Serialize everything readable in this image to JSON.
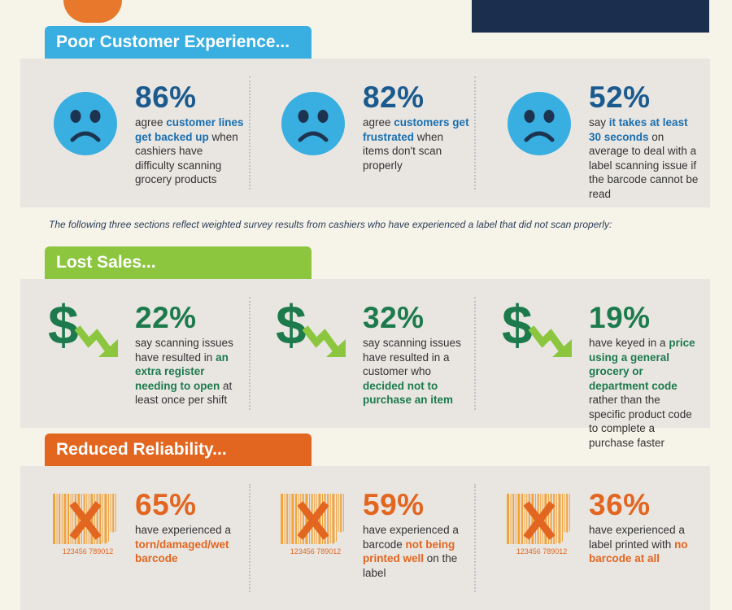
{
  "sections": [
    {
      "title": "Poor Customer Experience...",
      "icon": "sad-face-icon",
      "color": "#39aee0",
      "stats": [
        {
          "pct": "86%",
          "parts": [
            {
              "t": "agree "
            },
            {
              "t": "customer lines get backed up",
              "b": true
            },
            {
              "t": " when cashiers have difficulty scanning grocery products"
            }
          ]
        },
        {
          "pct": "82%",
          "parts": [
            {
              "t": "agree "
            },
            {
              "t": "customers get frustrated",
              "b": true
            },
            {
              "t": " when items don't scan properly"
            }
          ]
        },
        {
          "pct": "52%",
          "parts": [
            {
              "t": "say "
            },
            {
              "t": "it takes at least 30 seconds",
              "b": true
            },
            {
              "t": " on average to deal with a label scanning issue if the barcode cannot be read"
            }
          ]
        }
      ]
    },
    {
      "title": "Lost Sales...",
      "icon": "dollar-down-icon",
      "color": "#8cc63f",
      "stats": [
        {
          "pct": "22%",
          "parts": [
            {
              "t": "say scanning issues have resulted in "
            },
            {
              "t": "an extra register needing to open",
              "b": true
            },
            {
              "t": " at least once per shift"
            }
          ]
        },
        {
          "pct": "32%",
          "parts": [
            {
              "t": "say scanning issues have resulted in a customer who "
            },
            {
              "t": "decided not to purchase an item",
              "b": true
            }
          ]
        },
        {
          "pct": "19%",
          "parts": [
            {
              "t": "have keyed in a "
            },
            {
              "t": "price using a general grocery or department code",
              "b": true
            },
            {
              "t": " rather than the specific product code to complete a purchase faster"
            }
          ]
        }
      ]
    },
    {
      "title": "Reduced Reliability...",
      "icon": "broken-barcode-icon",
      "color": "#e2661f",
      "barcode_digits": "123456 789012",
      "stats": [
        {
          "pct": "65%",
          "parts": [
            {
              "t": "have experienced a "
            },
            {
              "t": "torn/damaged/wet barcode",
              "b": true
            }
          ]
        },
        {
          "pct": "59%",
          "parts": [
            {
              "t": "have experienced a barcode "
            },
            {
              "t": "not being printed well",
              "b": true
            },
            {
              "t": " on the label"
            }
          ]
        },
        {
          "pct": "36%",
          "parts": [
            {
              "t": "have experienced a label printed with "
            },
            {
              "t": "no barcode at all",
              "b": true
            }
          ]
        }
      ]
    }
  ],
  "note": "The following three sections reflect weighted survey results from cashiers who have experienced a label that did not scan properly:"
}
